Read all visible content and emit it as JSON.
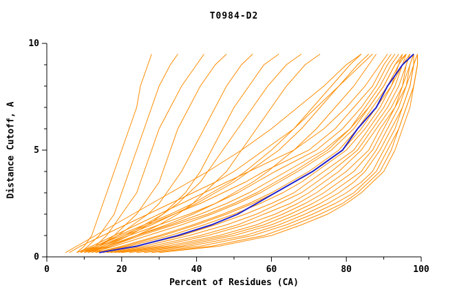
{
  "window": {
    "background": "#ffffff"
  },
  "chart_data": {
    "type": "line",
    "title": "T0984-D2",
    "xlabel": "Percent of Residues (CA)",
    "ylabel": "Distance Cutoff, A",
    "xlim": [
      0,
      100
    ],
    "ylim": [
      0,
      10
    ],
    "x_ticks": [
      0,
      20,
      40,
      60,
      80,
      100
    ],
    "x_minor_step": 10,
    "y_ticks": [
      0,
      5,
      10
    ],
    "y_minor_step": 1,
    "grid": false,
    "legend": "none",
    "colors": {
      "series": "#ff8c00",
      "highlight": "#2222cc",
      "axis": "#000000",
      "text": "#000000"
    },
    "ys": [
      0.2,
      0.5,
      1,
      1.5,
      2,
      2.5,
      3,
      3.5,
      4,
      5,
      6,
      7,
      8,
      9,
      9.5
    ],
    "highlight_xs": [
      14,
      24,
      35,
      44,
      51,
      56,
      61,
      66,
      71,
      79,
      83,
      88,
      91,
      95,
      98
    ],
    "series_xs": [
      [
        8,
        10,
        12,
        13,
        14,
        15,
        16,
        17,
        18,
        20,
        22,
        24,
        25,
        27,
        28
      ],
      [
        9,
        11,
        14,
        16,
        18,
        19,
        20,
        21,
        22,
        24,
        26,
        28,
        30,
        33,
        35
      ],
      [
        10,
        13,
        16,
        18,
        20,
        22,
        24,
        25,
        26,
        28,
        30,
        33,
        36,
        40,
        42
      ],
      [
        11,
        14,
        18,
        21,
        24,
        26,
        28,
        30,
        31,
        33,
        35,
        38,
        41,
        45,
        48
      ],
      [
        10,
        14,
        19,
        23,
        27,
        30,
        32,
        34,
        36,
        39,
        42,
        45,
        48,
        52,
        55
      ],
      [
        12,
        16,
        22,
        27,
        31,
        34,
        37,
        39,
        41,
        44,
        47,
        50,
        54,
        58,
        62
      ],
      [
        11,
        15,
        21,
        26,
        31,
        35,
        38,
        41,
        43,
        47,
        51,
        55,
        59,
        64,
        68
      ],
      [
        13,
        17,
        24,
        30,
        35,
        39,
        42,
        45,
        48,
        52,
        56,
        60,
        64,
        69,
        73
      ],
      [
        5,
        8,
        13,
        18,
        23,
        28,
        33,
        38,
        43,
        52,
        60,
        67,
        74,
        80,
        84
      ],
      [
        6,
        9,
        15,
        21,
        27,
        33,
        39,
        45,
        50,
        58,
        66,
        72,
        78,
        84,
        87
      ],
      [
        9,
        14,
        21,
        28,
        34,
        40,
        45,
        50,
        54,
        62,
        68,
        73,
        78,
        83,
        86
      ],
      [
        10,
        16,
        24,
        32,
        39,
        45,
        50,
        55,
        59,
        66,
        72,
        77,
        82,
        86,
        88
      ],
      [
        8,
        13,
        19,
        26,
        33,
        39,
        44,
        49,
        53,
        60,
        66,
        71,
        76,
        81,
        84
      ],
      [
        8,
        12,
        18,
        24,
        30,
        36,
        42,
        48,
        54,
        66,
        74,
        80,
        85,
        89,
        91
      ],
      [
        9,
        13,
        20,
        27,
        34,
        41,
        47,
        53,
        58,
        70,
        77,
        82,
        87,
        90,
        92
      ],
      [
        10,
        15,
        22,
        30,
        38,
        45,
        51,
        56,
        61,
        72,
        79,
        84,
        88,
        91,
        93
      ],
      [
        11,
        16,
        24,
        33,
        41,
        48,
        54,
        59,
        64,
        74,
        81,
        85,
        89,
        92,
        94
      ],
      [
        12,
        18,
        27,
        36,
        44,
        51,
        57,
        62,
        67,
        76,
        82,
        86,
        90,
        93,
        95
      ],
      [
        13,
        20,
        30,
        39,
        47,
        54,
        60,
        65,
        70,
        78,
        83,
        87,
        91,
        94,
        95
      ],
      [
        14,
        22,
        33,
        42,
        50,
        57,
        63,
        68,
        72,
        80,
        85,
        89,
        92,
        94,
        96
      ],
      [
        15,
        24,
        36,
        45,
        53,
        60,
        66,
        70,
        74,
        82,
        86,
        90,
        93,
        95,
        96
      ],
      [
        16,
        26,
        38,
        48,
        56,
        62,
        68,
        72,
        76,
        83,
        87,
        91,
        94,
        96,
        97
      ],
      [
        17,
        28,
        41,
        51,
        58,
        65,
        70,
        74,
        78,
        84,
        88,
        92,
        95,
        96,
        97
      ],
      [
        18,
        30,
        43,
        53,
        61,
        67,
        72,
        76,
        80,
        86,
        89,
        93,
        95,
        97,
        98
      ],
      [
        19,
        32,
        46,
        56,
        63,
        69,
        74,
        78,
        82,
        87,
        90,
        93,
        96,
        97,
        98
      ],
      [
        20,
        34,
        48,
        58,
        65,
        71,
        76,
        80,
        84,
        88,
        91,
        94,
        96,
        98,
        98
      ],
      [
        22,
        36,
        50,
        60,
        67,
        73,
        78,
        82,
        85,
        89,
        92,
        95,
        97,
        98,
        99
      ],
      [
        24,
        38,
        53,
        62,
        69,
        75,
        80,
        84,
        87,
        90,
        93,
        95,
        97,
        98,
        99
      ],
      [
        26,
        41,
        55,
        64,
        71,
        77,
        82,
        85,
        88,
        91,
        94,
        96,
        98,
        99,
        99
      ],
      [
        28,
        44,
        58,
        66,
        73,
        79,
        83,
        86,
        89,
        92,
        94,
        96,
        98,
        99,
        99
      ],
      [
        30,
        46,
        60,
        68,
        75,
        80,
        84,
        87,
        90,
        93,
        95,
        97,
        98,
        99,
        99
      ],
      [
        13,
        21,
        31,
        40,
        48,
        55,
        61,
        66,
        71,
        79,
        84,
        88,
        92,
        95,
        97
      ],
      [
        11,
        17,
        25,
        34,
        43,
        50,
        56,
        61,
        66,
        75,
        81,
        86,
        90,
        93,
        96
      ]
    ]
  }
}
